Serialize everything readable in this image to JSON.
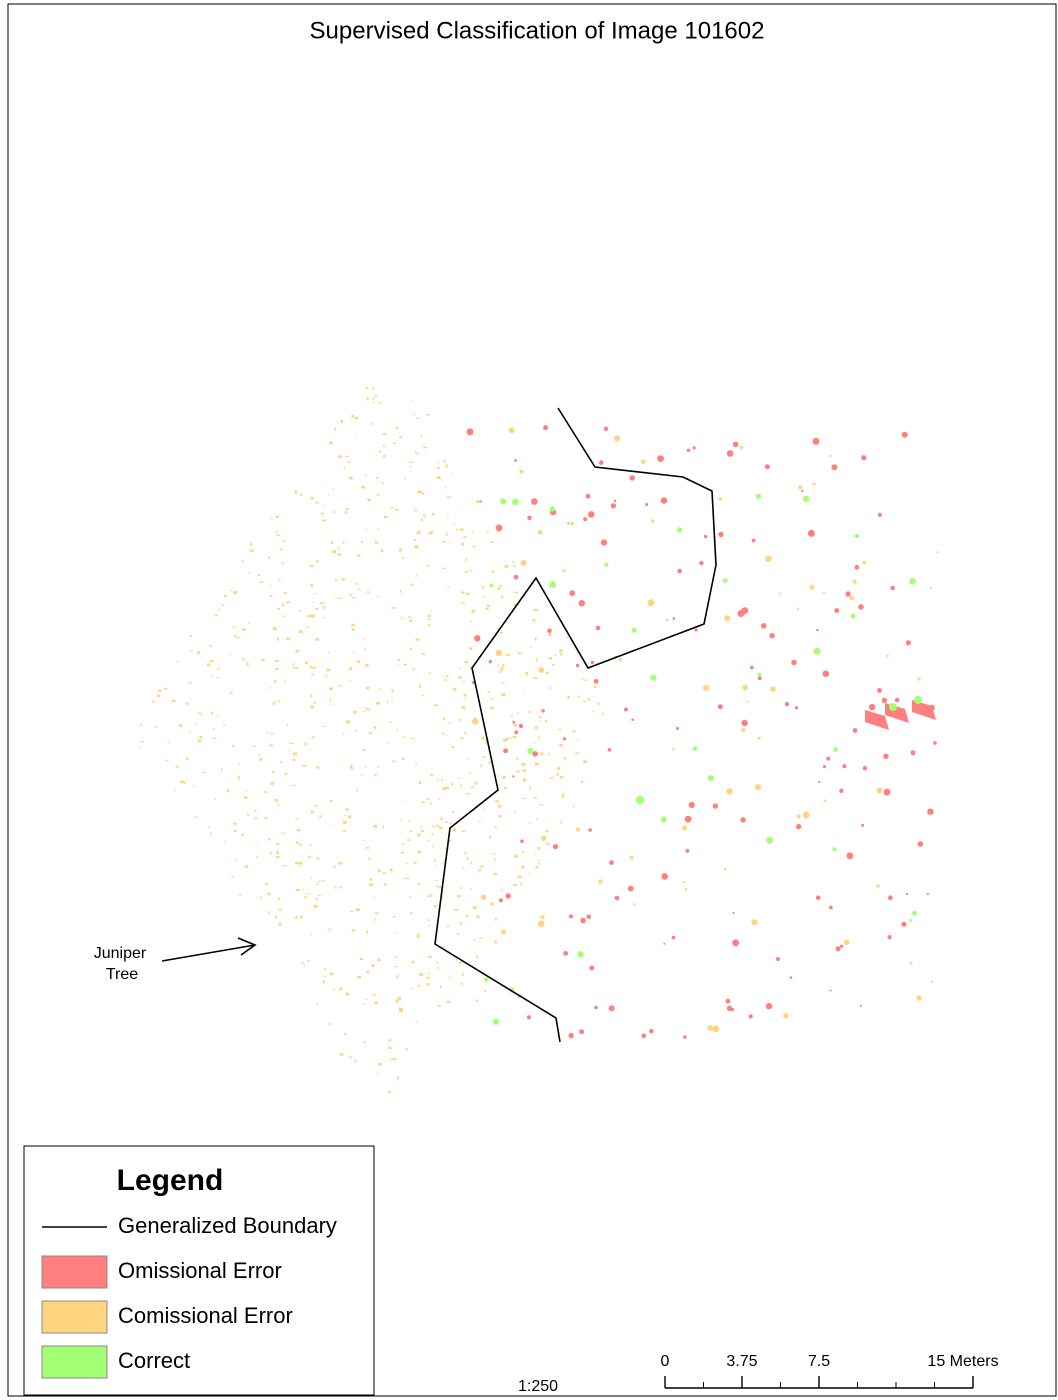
{
  "map": {
    "title": "Supervised Classification of Image 101602",
    "annotation": {
      "line1": "Juniper",
      "line2": "Tree"
    },
    "legend": {
      "title": "Legend",
      "entries": [
        {
          "label": "Generalized Boundary",
          "color": "#000000",
          "kind": "line"
        },
        {
          "label": "Omissional Error",
          "color": "#ff7f7f",
          "kind": "patch"
        },
        {
          "label": "Comissional Error",
          "color": "#ffd37f",
          "kind": "patch"
        },
        {
          "label": "Correct",
          "color": "#a3ff73",
          "kind": "patch"
        }
      ]
    },
    "scale_text": "1:250",
    "scale_bar": {
      "ticks": [
        0,
        3.75,
        7.5,
        {
          "value": 15,
          "label": "15 Meters"
        }
      ]
    }
  }
}
